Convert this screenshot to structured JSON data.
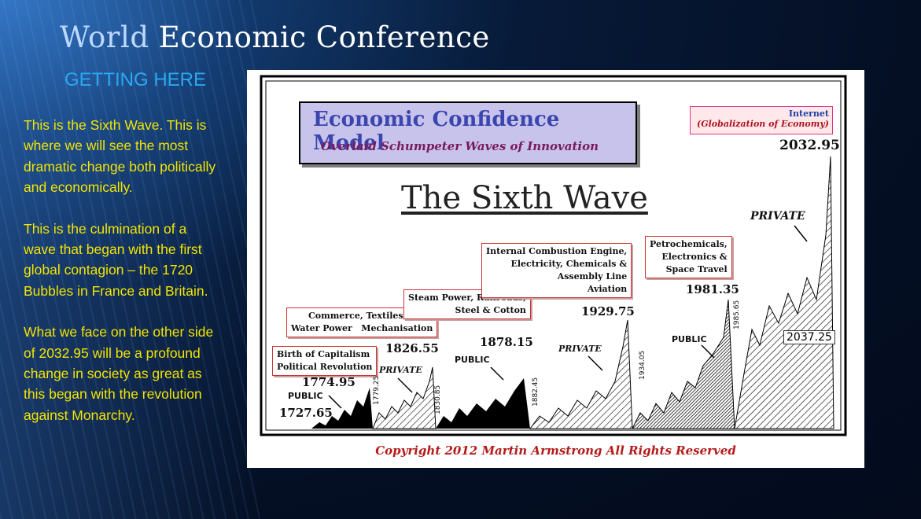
{
  "header": {
    "title_first": "World",
    "title_rest": "Economic Conference",
    "subtitle": "GETTING HERE"
  },
  "body": {
    "paragraphs": [
      "This is the Sixth Wave. This is where we will see the most dramatic change both politically and economically.",
      "This is the culmination of a wave that began with the first global contagion – the 1720 Bubbles in France and Britain.",
      "What we face on the other side of 2032.95 will be a profound change in society as great as this began with the revolution against Monarchy."
    ]
  },
  "figure": {
    "box_title": "Economic Confidence Model",
    "box_subtitle": "Overlaid Schumpeter Waves of Innovation",
    "main_title": "The Sixth Wave",
    "internet_line1": "Internet",
    "internet_line2": "(Globalization of Economy)",
    "labels": {
      "capitalism_1": "Birth of Capitalism",
      "capitalism_2": "Political Revolution",
      "commerce_1": "Commerce, Textiles, Iron,",
      "commerce_2": "Water Power   Mechanisation",
      "steam_1": "Steam Power, Railroads,",
      "steam_2": "Steel & Cotton",
      "ice_1": "Internal Combustion Engine,",
      "ice_2": "Electricity, Chemicals &",
      "ice_3": "Assembly Line",
      "ice_4": "Aviation",
      "petro_1": "Petrochemicals,",
      "petro_2": "Electronics &",
      "petro_3": "Space Travel"
    },
    "values": {
      "v1727": "1727.65",
      "v1774": "1774.95",
      "v1826": "1826.55",
      "v1878": "1878.15",
      "v1929": "1929.75",
      "v1981": "1981.35",
      "v2032": "2032.95",
      "v2037": "2037.25",
      "v1779": "1779.25",
      "v1830": "1830.85",
      "v1882": "1882.45",
      "v1934": "1934.05",
      "v1985": "1985.65"
    },
    "words": {
      "public": "PUBLIC",
      "private": "PRIVATE"
    },
    "copyright": "Copyright 2012 Martin Armstrong All Rights Reserved"
  }
}
